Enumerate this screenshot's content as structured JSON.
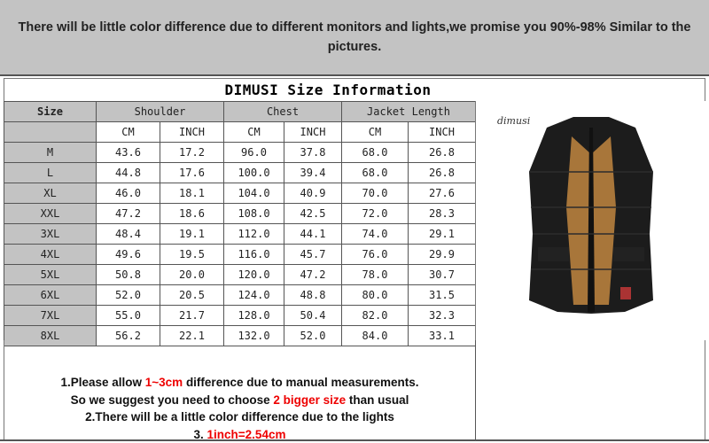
{
  "banner": "There will be little color difference due to different monitors and lights,we promise you 90%-98%  Similar to the pictures.",
  "title": "DIMUSI  Size Information",
  "headers": {
    "size": "Size",
    "shoulder": "Shoulder",
    "chest": "Chest",
    "length": "Jacket Length",
    "cm": "CM",
    "inch": "INCH"
  },
  "rows": [
    [
      "M",
      "43.6",
      "17.2",
      "96.0",
      "37.8",
      "68.0",
      "26.8"
    ],
    [
      "L",
      "44.8",
      "17.6",
      "100.0",
      "39.4",
      "68.0",
      "26.8"
    ],
    [
      "XL",
      "46.0",
      "18.1",
      "104.0",
      "40.9",
      "70.0",
      "27.6"
    ],
    [
      "XXL",
      "47.2",
      "18.6",
      "108.0",
      "42.5",
      "72.0",
      "28.3"
    ],
    [
      "3XL",
      "48.4",
      "19.1",
      "112.0",
      "44.1",
      "74.0",
      "29.1"
    ],
    [
      "4XL",
      "49.6",
      "19.5",
      "116.0",
      "45.7",
      "76.0",
      "29.9"
    ],
    [
      "5XL",
      "50.8",
      "20.0",
      "120.0",
      "47.2",
      "78.0",
      "30.7"
    ],
    [
      "6XL",
      "52.0",
      "20.5",
      "124.0",
      "48.8",
      "80.0",
      "31.5"
    ],
    [
      "7XL",
      "55.0",
      "21.7",
      "128.0",
      "50.4",
      "82.0",
      "32.3"
    ],
    [
      "8XL",
      "56.2",
      "22.1",
      "132.0",
      "52.0",
      "84.0",
      "33.1"
    ]
  ],
  "photo": {
    "logo": "dimusi"
  },
  "notes": {
    "l1a": "1.Please allow ",
    "l1b": "1~3cm",
    "l1c": " difference due to manual measurements.",
    "l2a": "So we suggest you need to choose ",
    "l2b": "2 bigger size",
    "l2c": " than usual",
    "l3": "2.There will be a little color difference due to the lights",
    "l4a": "3. ",
    "l4b": "1inch=2.54cm"
  },
  "colors": {
    "header_gray": "#c3c3c3",
    "highlight_red": "#e00000"
  }
}
